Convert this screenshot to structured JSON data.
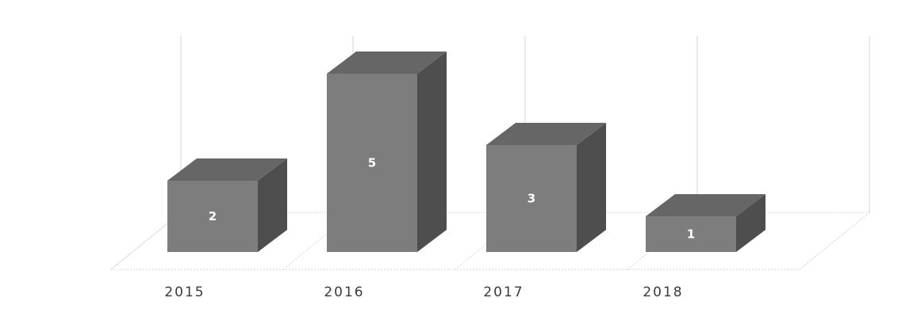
{
  "chart_data": {
    "type": "bar",
    "subtype": "3d-column",
    "categories": [
      "2015",
      "2016",
      "2017",
      "2018"
    ],
    "values": [
      2,
      5,
      3,
      1
    ],
    "title": "",
    "xlabel": "",
    "ylabel": "",
    "ylim": [
      0,
      6
    ],
    "grid": true,
    "legend": "none",
    "data_labels": true
  },
  "colors": {
    "bar_front": "#7d7d7d",
    "bar_top": "#666666",
    "bar_side": "#4e4e4e",
    "grid": "#d6d6d6",
    "label_text": "#3a3a3a",
    "data_label_text": "#ffffff"
  }
}
